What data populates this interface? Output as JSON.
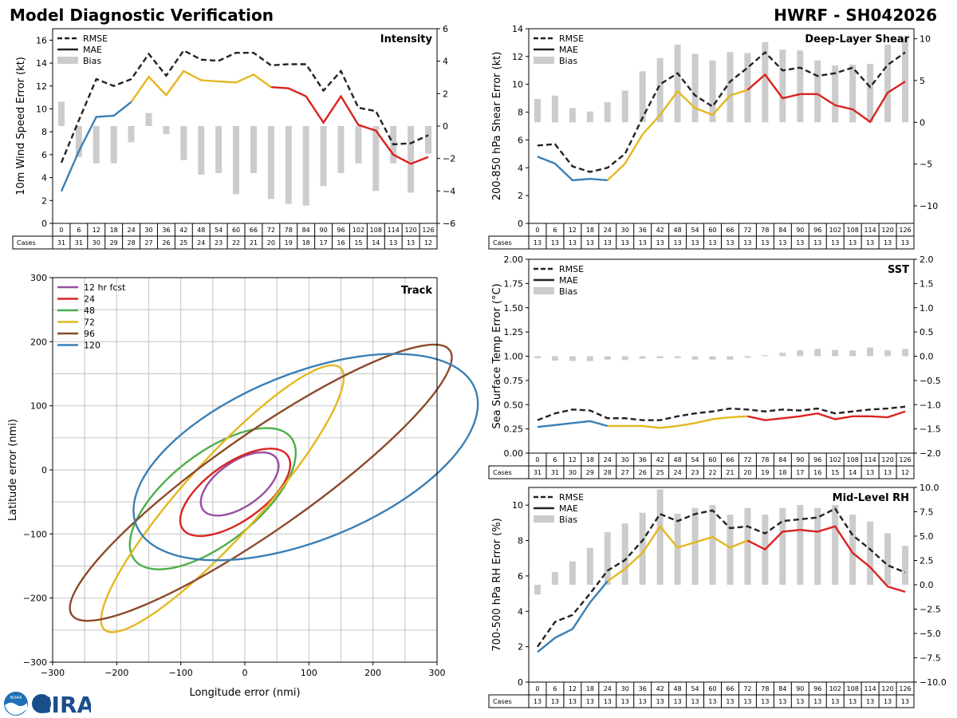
{
  "header": {
    "title": "Model Diagnostic Verification",
    "storm": "HWRF - SH042026"
  },
  "logo": {
    "text": "CIRA",
    "noaa_text": "NOAA"
  },
  "colors": {
    "rmse": "#222222",
    "blue": "#3a7fb5",
    "yellow": "#e3b820",
    "red": "#d9231f",
    "bias": "#cccccc",
    "purple": "#984ea3",
    "green": "#4daf4a",
    "brown": "#8c4a2a"
  },
  "legend_labels": {
    "rmse": "RMSE",
    "mae": "MAE",
    "bias": "Bias"
  },
  "cases_label": "Cases",
  "chart_data": [
    {
      "id": "intensity",
      "type": "line+bar",
      "title": "Intensity",
      "ylabel": "10m Wind Speed Error (kt)",
      "ylim": [
        0,
        17
      ],
      "yticks": [
        0,
        2,
        4,
        6,
        8,
        10,
        12,
        14,
        16
      ],
      "y2lim": [
        -6,
        6
      ],
      "y2ticks": [
        -6,
        -4,
        -2,
        0,
        2,
        4,
        6
      ],
      "hours": [
        0,
        6,
        12,
        18,
        24,
        30,
        36,
        42,
        48,
        54,
        60,
        66,
        72,
        78,
        84,
        90,
        96,
        102,
        108,
        114,
        120,
        126
      ],
      "cases": [
        31,
        31,
        30,
        29,
        28,
        27,
        26,
        25,
        24,
        23,
        22,
        21,
        20,
        19,
        18,
        17,
        16,
        15,
        14,
        13,
        13,
        12
      ],
      "rmse": [
        5.3,
        9.0,
        12.6,
        12.0,
        12.6,
        14.8,
        12.9,
        15.1,
        14.3,
        14.2,
        14.9,
        14.9,
        13.8,
        13.9,
        13.9,
        11.6,
        13.3,
        10.1,
        9.8,
        6.9,
        7.0,
        7.7
      ],
      "mae": [
        2.8,
        6.3,
        9.3,
        9.4,
        10.6,
        12.8,
        11.2,
        13.3,
        12.5,
        12.4,
        12.3,
        13.0,
        11.9,
        11.8,
        11.1,
        8.8,
        11.1,
        8.6,
        8.1,
        6.0,
        5.2,
        5.8
      ],
      "bias": [
        1.5,
        -1.9,
        -2.3,
        -2.3,
        -1.0,
        0.8,
        -0.5,
        -2.1,
        -3.0,
        -2.9,
        -4.2,
        -2.9,
        -4.5,
        -4.8,
        -4.9,
        -3.7,
        -2.9,
        -2.3,
        -4.0,
        -2.3,
        -4.1,
        -1.7
      ]
    },
    {
      "id": "shear",
      "type": "line+bar",
      "title": "Deep-Layer Shear",
      "ylabel": "200-850 hPa Shear Error (kt)",
      "ylim": [
        0,
        14
      ],
      "yticks": [
        0,
        2,
        4,
        6,
        8,
        10,
        12,
        14
      ],
      "y2lim": [
        -12.1,
        11.2
      ],
      "y2ticks": [
        -10,
        -5,
        0,
        5,
        10
      ],
      "hours": [
        0,
        6,
        12,
        18,
        24,
        30,
        36,
        42,
        48,
        54,
        60,
        66,
        72,
        78,
        84,
        90,
        96,
        102,
        108,
        114,
        120,
        126
      ],
      "cases": [
        13,
        13,
        13,
        13,
        13,
        13,
        13,
        13,
        13,
        13,
        13,
        13,
        13,
        13,
        13,
        13,
        13,
        13,
        13,
        13,
        13,
        13
      ],
      "rmse": [
        5.6,
        5.7,
        4.1,
        3.7,
        4.0,
        5.0,
        7.6,
        10.0,
        10.8,
        9.2,
        8.4,
        10.2,
        11.2,
        12.3,
        11.0,
        11.2,
        10.6,
        10.8,
        11.2,
        9.8,
        11.4,
        12.3
      ],
      "mae": [
        4.8,
        4.3,
        3.1,
        3.2,
        3.1,
        4.3,
        6.4,
        7.8,
        9.5,
        8.3,
        7.8,
        9.2,
        9.6,
        10.7,
        9.0,
        9.3,
        9.3,
        8.5,
        8.2,
        7.3,
        9.4,
        10.2
      ],
      "bias": [
        2.8,
        3.2,
        1.7,
        1.3,
        2.4,
        3.8,
        6.1,
        7.7,
        9.3,
        8.2,
        7.4,
        8.4,
        8.3,
        9.6,
        8.7,
        8.6,
        7.4,
        6.8,
        6.9,
        7.0,
        9.3,
        10.0
      ]
    },
    {
      "id": "sst",
      "type": "line+bar",
      "title": "SST",
      "ylabel": "Sea Surface Temp Error (°C)",
      "ylim": [
        0,
        2.0
      ],
      "yticks": [
        0.0,
        0.25,
        0.5,
        0.75,
        1.0,
        1.25,
        1.5,
        1.75,
        2.0
      ],
      "y2lim": [
        -2.0,
        2.0
      ],
      "y2ticks": [
        -2.0,
        -1.5,
        -1.0,
        -0.5,
        0.0,
        0.5,
        1.0,
        1.5,
        2.0
      ],
      "hours": [
        0,
        6,
        12,
        18,
        24,
        30,
        36,
        42,
        48,
        54,
        60,
        66,
        72,
        78,
        84,
        90,
        96,
        102,
        108,
        114,
        120,
        126
      ],
      "cases": [
        31,
        31,
        30,
        29,
        28,
        27,
        26,
        25,
        24,
        23,
        22,
        21,
        20,
        19,
        18,
        17,
        16,
        15,
        14,
        13,
        13,
        12
      ],
      "rmse": [
        0.34,
        0.41,
        0.45,
        0.44,
        0.36,
        0.36,
        0.34,
        0.34,
        0.38,
        0.41,
        0.43,
        0.46,
        0.45,
        0.43,
        0.45,
        0.44,
        0.46,
        0.41,
        0.43,
        0.45,
        0.46,
        0.48
      ],
      "mae": [
        0.27,
        0.29,
        0.31,
        0.33,
        0.28,
        0.28,
        0.28,
        0.26,
        0.28,
        0.31,
        0.35,
        0.37,
        0.38,
        0.34,
        0.36,
        0.38,
        0.41,
        0.35,
        0.38,
        0.38,
        0.37,
        0.43
      ],
      "bias": [
        -0.04,
        -0.09,
        -0.1,
        -0.1,
        -0.07,
        -0.08,
        -0.05,
        -0.04,
        -0.04,
        -0.07,
        -0.07,
        -0.07,
        -0.03,
        0.02,
        0.07,
        0.12,
        0.15,
        0.13,
        0.12,
        0.18,
        0.12,
        0.15
      ]
    },
    {
      "id": "rh",
      "type": "line+bar",
      "title": "Mid-Level RH",
      "ylabel": "700-500 hPa RH Error (%)",
      "ylim": [
        0,
        11
      ],
      "yticks": [
        0,
        2,
        4,
        6,
        8,
        10
      ],
      "y2lim": [
        -10.0,
        10.0
      ],
      "y2ticks": [
        -10.0,
        -7.5,
        -5.0,
        -2.5,
        0.0,
        2.5,
        5.0,
        7.5,
        10.0
      ],
      "hours": [
        0,
        6,
        12,
        18,
        24,
        30,
        36,
        42,
        48,
        54,
        60,
        66,
        72,
        78,
        84,
        90,
        96,
        102,
        108,
        114,
        120,
        126
      ],
      "cases": [
        13,
        13,
        13,
        13,
        13,
        13,
        13,
        13,
        13,
        13,
        13,
        13,
        13,
        13,
        13,
        13,
        13,
        13,
        13,
        13,
        13,
        13
      ],
      "rmse": [
        2.0,
        3.4,
        3.8,
        5.0,
        6.3,
        6.9,
        8.0,
        9.5,
        9.1,
        9.5,
        9.7,
        8.7,
        8.8,
        8.4,
        9.1,
        9.2,
        9.3,
        9.8,
        8.3,
        7.5,
        6.6,
        6.2
      ],
      "mae": [
        1.7,
        2.5,
        3.0,
        4.5,
        5.7,
        6.4,
        7.3,
        8.8,
        7.6,
        7.9,
        8.2,
        7.6,
        8.0,
        7.5,
        8.5,
        8.6,
        8.5,
        8.8,
        7.3,
        6.5,
        5.4,
        5.1
      ],
      "bias": [
        -1.0,
        1.3,
        2.4,
        3.8,
        5.4,
        6.3,
        7.4,
        9.8,
        7.3,
        7.9,
        8.2,
        7.2,
        7.9,
        7.2,
        7.9,
        8.2,
        7.9,
        8.2,
        7.2,
        6.5,
        5.3,
        4.0
      ]
    },
    {
      "id": "track",
      "type": "ellipses",
      "title": "Track",
      "xlabel": "Longitude error (nmi)",
      "ylabel": "Latitude error (nmi)",
      "xlim": [
        -300,
        300
      ],
      "ylim": [
        -300,
        300
      ],
      "ticks": [
        -300,
        -200,
        -100,
        0,
        100,
        200,
        300
      ],
      "ellipses": [
        {
          "label": "12 hr fcst",
          "color": "#984ea3",
          "cx": -8,
          "cy": -22,
          "a": 70,
          "b": 35,
          "angle_deg": 35
        },
        {
          "label": "24",
          "color": "#d9231f",
          "cx": -15,
          "cy": -35,
          "a": 100,
          "b": 45,
          "angle_deg": 35
        },
        {
          "label": "48",
          "color": "#4daf4a",
          "cx": -50,
          "cy": -45,
          "a": 155,
          "b": 70,
          "angle_deg": 38
        },
        {
          "label": "72",
          "color": "#e3b820",
          "cx": -35,
          "cy": -45,
          "a": 275,
          "b": 60,
          "angle_deg": 48
        },
        {
          "label": "96",
          "color": "#8c4a2a",
          "cx": 25,
          "cy": -20,
          "a": 360,
          "b": 75,
          "angle_deg": 35
        },
        {
          "label": "120",
          "color": "#3a7fb5",
          "cx": 95,
          "cy": 20,
          "a": 285,
          "b": 130,
          "angle_deg": 22
        }
      ]
    }
  ]
}
